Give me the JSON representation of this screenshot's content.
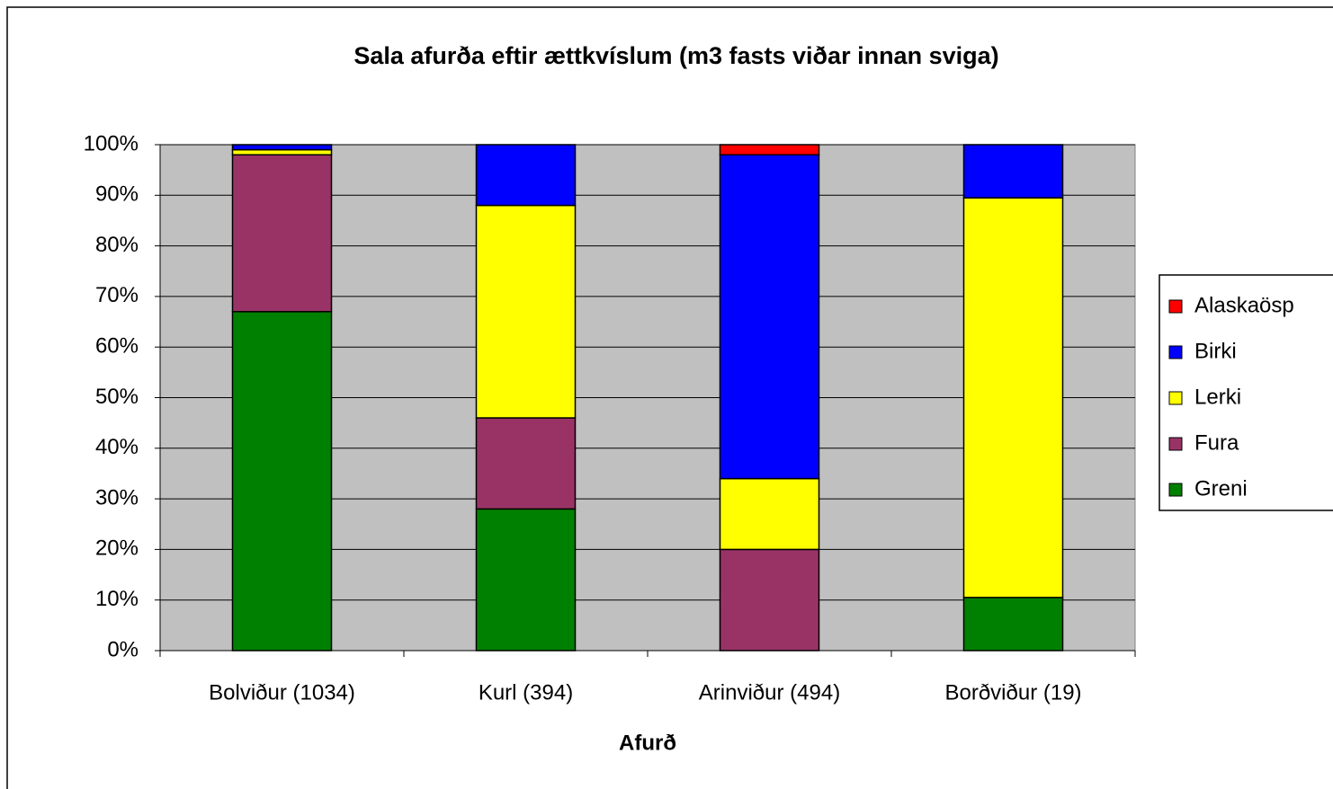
{
  "chart_data": {
    "type": "bar",
    "stacked": true,
    "title": "Sala afurða eftir ættkvíslum (m3 fasts viðar innan sviga)",
    "x_label": "Afurð",
    "categories": [
      "Bolviður (1034)",
      "Kurl (394)",
      "Arinviður (494)",
      "Borðviður (19)"
    ],
    "series": [
      {
        "name": "Greni",
        "color": "#008000",
        "values": [
          67,
          28,
          0,
          10.5
        ]
      },
      {
        "name": "Fura",
        "color": "#993366",
        "values": [
          31,
          18,
          20,
          0
        ]
      },
      {
        "name": "Lerki",
        "color": "#ffff00",
        "values": [
          1,
          42,
          14,
          79
        ]
      },
      {
        "name": "Birki",
        "color": "#0000ff",
        "values": [
          1,
          12,
          64,
          10.5
        ]
      },
      {
        "name": "Alaskaösp",
        "color": "#ff0000",
        "values": [
          0,
          0,
          2,
          0
        ]
      }
    ],
    "ylim": [
      0,
      100
    ],
    "yticks": [
      {
        "value": 0,
        "label": "0%"
      },
      {
        "value": 10,
        "label": "10%"
      },
      {
        "value": 20,
        "label": "20%"
      },
      {
        "value": 30,
        "label": "30%"
      },
      {
        "value": 40,
        "label": "40%"
      },
      {
        "value": 50,
        "label": "50%"
      },
      {
        "value": 60,
        "label": "60%"
      },
      {
        "value": 70,
        "label": "70%"
      },
      {
        "value": 80,
        "label": "80%"
      },
      {
        "value": 90,
        "label": "90%"
      },
      {
        "value": 100,
        "label": "100%"
      }
    ],
    "grid": true,
    "legend": "right"
  }
}
